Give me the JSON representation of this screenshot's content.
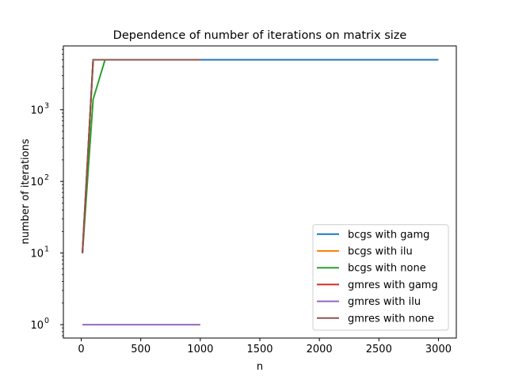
{
  "chart_data": {
    "type": "line",
    "title": "Dependence of number of iterations on matrix size",
    "xlabel": "n",
    "ylabel": "number of iterations",
    "xlim": [
      -150,
      3150
    ],
    "ylim": [
      0.65,
      7800
    ],
    "yscale": "log",
    "x_ticks": [
      {
        "value": 0,
        "label": "0"
      },
      {
        "value": 500,
        "label": "500"
      },
      {
        "value": 1000,
        "label": "1000"
      },
      {
        "value": 1500,
        "label": "1500"
      },
      {
        "value": 2000,
        "label": "2000"
      },
      {
        "value": 2500,
        "label": "2500"
      },
      {
        "value": 3000,
        "label": "3000"
      }
    ],
    "y_ticks": [
      {
        "value": 1,
        "base": "10",
        "exp": "0"
      },
      {
        "value": 10,
        "base": "10",
        "exp": "1"
      },
      {
        "value": 100,
        "base": "10",
        "exp": "2"
      },
      {
        "value": 1000,
        "base": "10",
        "exp": "3"
      }
    ],
    "grid": false,
    "legend_position": "lower-right",
    "series": [
      {
        "name": "bcgs with gamg",
        "color": "#1f77b4",
        "x": [
          10,
          100,
          200,
          1000,
          3000
        ],
        "y": [
          10,
          5000,
          5000,
          5000,
          5000
        ]
      },
      {
        "name": "bcgs with ilu",
        "color": "#ff7f0e",
        "x": [
          10,
          100,
          200,
          1000
        ],
        "y": [
          10,
          5000,
          5000,
          5000
        ]
      },
      {
        "name": "bcgs with none",
        "color": "#2ca02c",
        "x": [
          10,
          100,
          200,
          1000
        ],
        "y": [
          10,
          1400,
          5000,
          5000
        ]
      },
      {
        "name": "gmres with gamg",
        "color": "#d62728",
        "x": [
          10,
          100,
          200,
          1000
        ],
        "y": [
          10,
          5000,
          5000,
          5000
        ]
      },
      {
        "name": "gmres with ilu",
        "color": "#9467bd",
        "x": [
          10,
          100,
          200,
          1000
        ],
        "y": [
          1,
          1,
          1,
          1
        ]
      },
      {
        "name": "gmres with none",
        "color": "#8c564b",
        "x": [
          10,
          100,
          200,
          1000
        ],
        "y": [
          10,
          5000,
          5000,
          5000
        ]
      }
    ]
  }
}
